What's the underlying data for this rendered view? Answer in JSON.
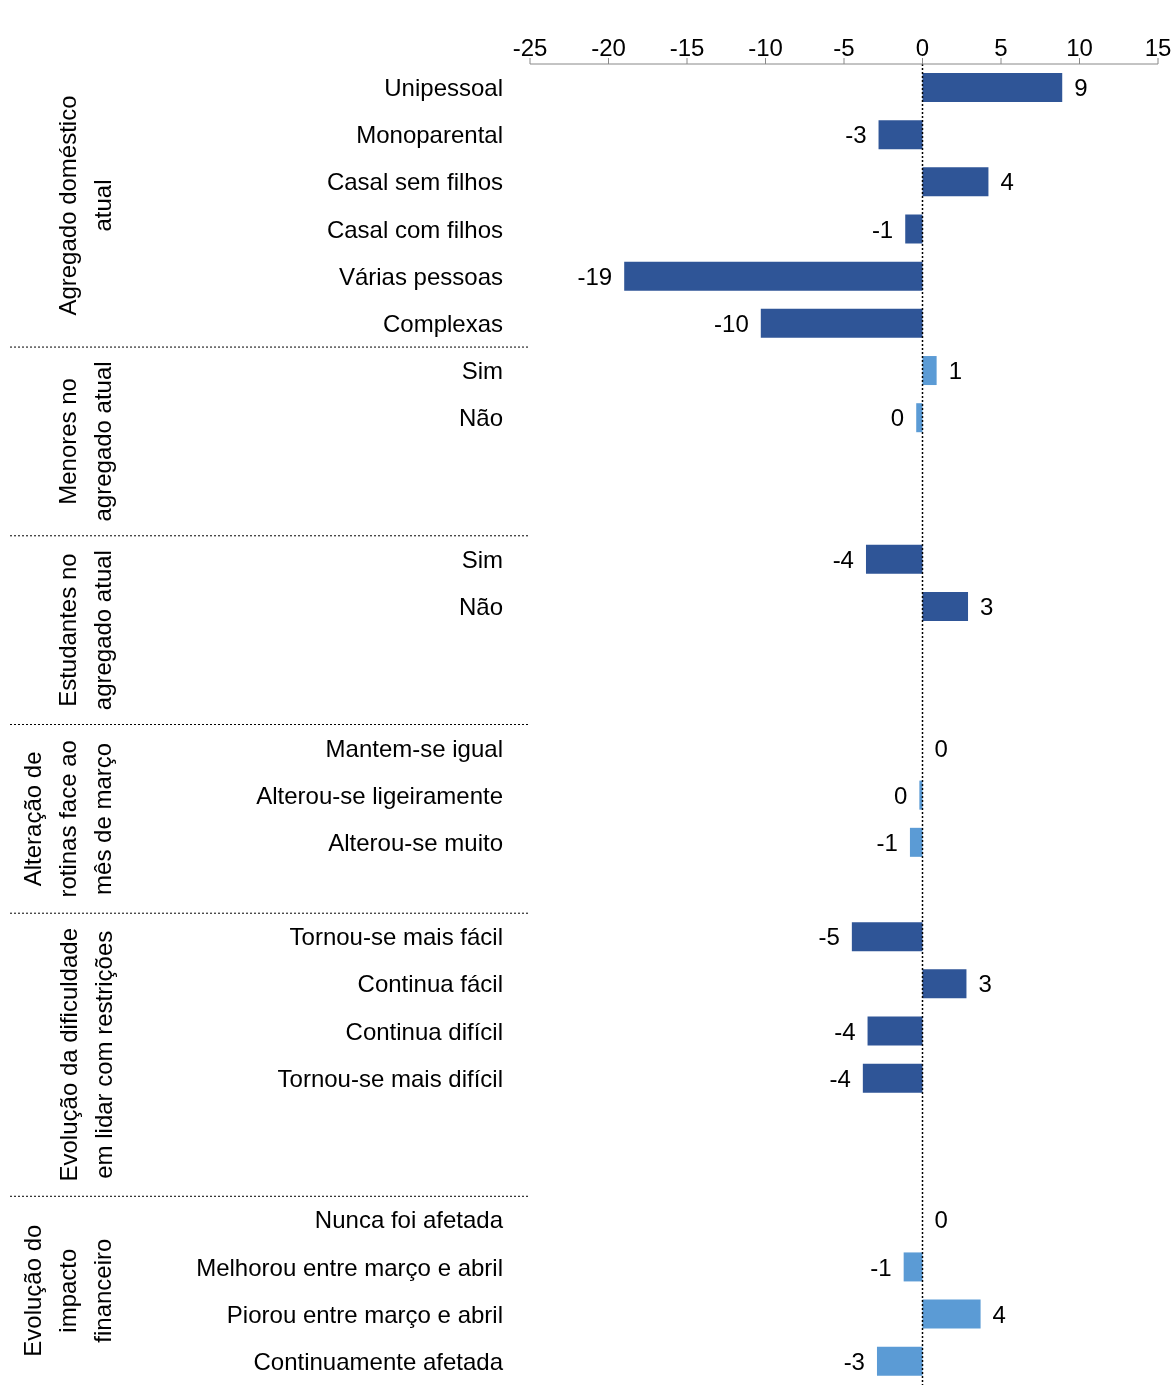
{
  "chart_data": {
    "type": "bar",
    "orientation": "horizontal",
    "stacked": true,
    "categories": [
      "Unipessoal",
      "Monoparental",
      "Casal sem filhos",
      "Casal com filhos",
      "Várias pessoas",
      "Complexas",
      "Sim",
      "Não",
      null,
      null,
      "Sim",
      "Não",
      null,
      null,
      "Mantem-se igual",
      "Alterou-se ligeiramente",
      "Alterou-se muito",
      null,
      "Tornou-se mais fácil",
      "Continua fácil",
      "Continua difícil",
      "Tornou-se mais difícil",
      null,
      null,
      "Nunca foi afetada",
      "Melhorou entre março e abril",
      "Piorou entre março e abril",
      "Continuamente afetada"
    ],
    "series": [
      {
        "color": "#2f5597",
        "values": [
          8.9,
          -2.8,
          4.2,
          -1.1,
          -19,
          -10.3,
          null,
          null,
          null,
          null,
          null,
          null,
          null,
          null,
          null,
          null,
          null,
          null,
          null,
          null,
          null,
          null,
          null,
          null,
          null,
          null,
          null,
          null
        ],
        "value_labels": [
          "9",
          "-3",
          "4",
          "-1",
          "-19",
          "-10",
          null,
          null,
          null,
          null,
          null,
          null,
          null,
          null,
          null,
          null,
          null,
          null,
          null,
          null,
          null,
          null,
          null,
          null,
          null,
          null,
          null,
          null
        ]
      },
      {
        "color": "#5b9bd5",
        "values": [
          null,
          null,
          null,
          null,
          null,
          null,
          0.9,
          -0.4,
          null,
          null,
          null,
          null,
          null,
          null,
          null,
          null,
          null,
          null,
          null,
          null,
          null,
          null,
          null,
          null,
          null,
          null,
          null,
          null
        ],
        "value_labels": [
          null,
          null,
          null,
          null,
          null,
          null,
          "1",
          "0",
          null,
          null,
          null,
          null,
          null,
          null,
          null,
          null,
          null,
          null,
          null,
          null,
          null,
          null,
          null,
          null,
          null,
          null,
          null,
          null
        ]
      },
      {
        "color": "#2f5597",
        "values": [
          null,
          null,
          null,
          null,
          null,
          null,
          null,
          null,
          null,
          null,
          -3.6,
          2.9,
          null,
          null,
          null,
          null,
          null,
          null,
          null,
          null,
          null,
          null,
          null,
          null,
          null,
          null,
          null,
          null
        ],
        "value_labels": [
          null,
          null,
          null,
          null,
          null,
          null,
          null,
          null,
          null,
          null,
          "-4",
          "3",
          null,
          null,
          null,
          null,
          null,
          null,
          null,
          null,
          null,
          null,
          null,
          null,
          null,
          null,
          null,
          null
        ]
      },
      {
        "color": "#5b9bd5",
        "values": [
          null,
          null,
          null,
          null,
          null,
          null,
          null,
          null,
          null,
          null,
          null,
          null,
          null,
          null,
          0,
          -0.2,
          -0.8,
          null,
          null,
          null,
          null,
          null,
          null,
          null,
          null,
          null,
          null,
          null
        ],
        "value_labels": [
          null,
          null,
          null,
          null,
          null,
          null,
          null,
          null,
          null,
          null,
          null,
          null,
          null,
          null,
          "0",
          "0",
          "-1",
          null,
          null,
          null,
          null,
          null,
          null,
          null,
          null,
          null,
          null,
          null
        ]
      },
      {
        "color": "#2f5597",
        "values": [
          null,
          null,
          null,
          null,
          null,
          null,
          null,
          null,
          null,
          null,
          null,
          null,
          null,
          null,
          null,
          null,
          null,
          null,
          -4.5,
          2.8,
          -3.5,
          -3.8,
          null,
          null,
          null,
          null,
          null,
          null
        ],
        "value_labels": [
          null,
          null,
          null,
          null,
          null,
          null,
          null,
          null,
          null,
          null,
          null,
          null,
          null,
          null,
          null,
          null,
          null,
          null,
          "-5",
          "3",
          "-4",
          "-4",
          null,
          null,
          null,
          null,
          null,
          null
        ]
      },
      {
        "color": "#5b9bd5",
        "values": [
          null,
          null,
          null,
          null,
          null,
          null,
          null,
          null,
          null,
          null,
          null,
          null,
          null,
          null,
          null,
          null,
          null,
          null,
          null,
          null,
          null,
          null,
          null,
          null,
          0,
          -1.2,
          3.7,
          -2.9
        ],
        "value_labels": [
          null,
          null,
          null,
          null,
          null,
          null,
          null,
          null,
          null,
          null,
          null,
          null,
          null,
          null,
          null,
          null,
          null,
          null,
          null,
          null,
          null,
          null,
          null,
          null,
          "0",
          "-1",
          "4",
          "-3"
        ]
      }
    ],
    "annotations": [
      "Agregado doméstico\natual",
      "Menores no\nagregado atual",
      "Estudantes no\nagregado atual",
      "Alteração de\nrotinas face ao\nmês de março",
      "Evolução da dificuldade\nem lidar com restrições",
      "Evolução do\nimpacto\nfinanceiro"
    ],
    "ref_lines": [
      {
        "axis": "x",
        "value": 0,
        "line_style": "dotted",
        "color": "#000000"
      }
    ],
    "xlim": [
      -25,
      15
    ],
    "xticks": [
      -25,
      -20,
      -15,
      -10,
      -5,
      0,
      5,
      10,
      15
    ],
    "grid": false,
    "legend": false
  }
}
